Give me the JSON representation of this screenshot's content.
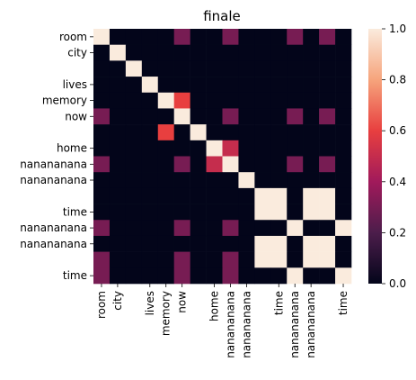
{
  "chart_data": {
    "type": "heatmap",
    "title": "finale",
    "xlabel": "",
    "ylabel": "",
    "labels": [
      "room",
      "city",
      "lives",
      "memory",
      "now",
      "home",
      "nanananana",
      "nanananana",
      "nanananana",
      "nanananana",
      "time",
      "nanananana",
      "nanananana",
      "nanananana",
      "nanananana",
      "time"
    ],
    "row_labels_shown": [
      "room",
      "city",
      "lives",
      "memory",
      "now",
      "home",
      "nanananana",
      "nanananana",
      "time",
      "nanananana",
      "nanananana",
      "time"
    ],
    "col_labels_shown": [
      "room",
      "city",
      "lives",
      "memory",
      "now",
      "home",
      "nanananana",
      "nanananana",
      "time",
      "nanananana",
      "nanananana",
      "time"
    ],
    "matrix": [
      [
        1,
        0,
        0,
        0,
        0,
        0.3,
        0,
        0,
        0.3,
        0,
        0,
        0,
        0.3,
        0,
        0.3,
        0
      ],
      [
        0,
        1,
        0,
        0,
        0,
        0,
        0,
        0,
        0,
        0,
        0,
        0,
        0,
        0,
        0,
        0
      ],
      [
        0,
        0,
        1,
        0,
        0,
        0,
        0,
        0,
        0,
        0,
        0,
        0,
        0,
        0,
        0,
        0
      ],
      [
        0,
        0,
        0,
        1,
        0,
        0,
        0,
        0,
        0,
        0,
        0,
        0,
        0,
        0,
        0,
        0
      ],
      [
        0,
        0,
        0,
        0,
        1,
        0.6,
        0,
        0,
        0,
        0,
        0,
        0,
        0,
        0,
        0,
        0
      ],
      [
        0.3,
        0,
        0,
        0,
        0,
        1,
        0,
        0,
        0.3,
        0,
        0,
        0,
        0.3,
        0,
        0.3,
        0
      ],
      [
        0,
        0,
        0,
        0,
        0.6,
        0,
        1,
        0,
        0,
        0,
        0,
        0,
        0,
        0,
        0,
        0
      ],
      [
        0,
        0,
        0,
        0,
        0,
        0,
        0,
        1,
        0.5,
        0,
        0,
        0,
        0,
        0,
        0,
        0
      ],
      [
        0.3,
        0,
        0,
        0,
        0,
        0.3,
        0,
        0.5,
        1,
        0,
        0,
        0,
        0.3,
        0,
        0.3,
        0
      ],
      [
        0,
        0,
        0,
        0,
        0,
        0,
        0,
        0,
        0,
        1,
        0,
        0,
        0,
        0,
        0,
        0
      ],
      [
        0,
        0,
        0,
        0,
        0,
        0,
        0,
        0,
        0,
        0,
        1,
        1,
        0,
        1,
        1,
        0
      ],
      [
        0,
        0,
        0,
        0,
        0,
        0,
        0,
        0,
        0,
        0,
        1,
        1,
        0,
        1,
        1,
        0
      ],
      [
        0.3,
        0,
        0,
        0,
        0,
        0.3,
        0,
        0,
        0.3,
        0,
        0,
        0,
        1,
        0,
        0,
        1
      ],
      [
        0,
        0,
        0,
        0,
        0,
        0,
        0,
        0,
        0,
        0,
        1,
        1,
        0,
        1,
        1,
        0
      ],
      [
        0.3,
        0,
        0,
        0,
        0,
        0.3,
        0,
        0,
        0.3,
        0,
        1,
        1,
        0,
        1,
        1,
        0
      ],
      [
        0.3,
        0,
        0,
        0,
        0,
        0.3,
        0,
        0,
        0.3,
        0,
        0,
        0,
        1,
        0,
        0,
        1
      ]
    ],
    "colorbar": {
      "min": 0,
      "max": 1,
      "ticks": [
        "0.0",
        "0.2",
        "0.4",
        "0.6",
        "0.8",
        "1.0"
      ],
      "colormap": [
        "#03051a",
        "#4c1d4b",
        "#a11a5b",
        "#e83f3f",
        "#f6a47c",
        "#faebdd"
      ]
    },
    "grid": false
  }
}
